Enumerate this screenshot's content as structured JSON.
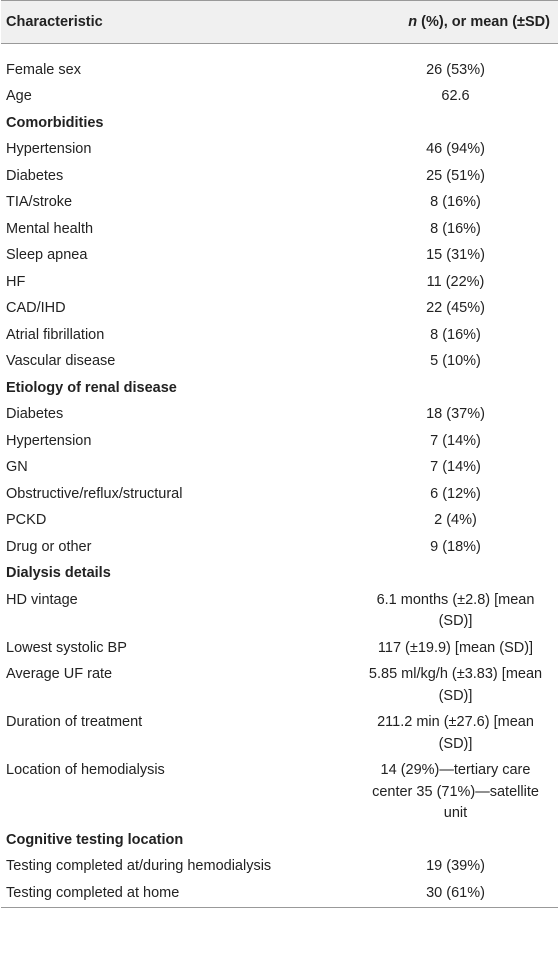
{
  "table": {
    "header": {
      "characteristic": "Characteristic",
      "stat_italic": "n",
      "stat_rest": " (%), or mean (±SD)"
    },
    "rows": [
      [
        "Female sex",
        "26 (53%)"
      ],
      [
        "Age",
        "62.6"
      ],
      [
        "Comorbidities"
      ],
      [
        "Hypertension",
        "46 (94%)"
      ],
      [
        "Diabetes",
        "25 (51%)"
      ],
      [
        "TIA/stroke",
        "8 (16%)"
      ],
      [
        "Mental health",
        "8 (16%)"
      ],
      [
        "Sleep apnea",
        "15 (31%)"
      ],
      [
        "HF",
        "11 (22%)"
      ],
      [
        "CAD/IHD",
        "22 (45%)"
      ],
      [
        "Atrial fibrillation",
        "8 (16%)"
      ],
      [
        "Vascular disease",
        "5 (10%)"
      ],
      [
        "Etiology of renal disease"
      ],
      [
        "Diabetes",
        "18 (37%)"
      ],
      [
        "Hypertension",
        "7 (14%)"
      ],
      [
        "GN",
        "7 (14%)"
      ],
      [
        "Obstructive/reflux/structural",
        "6 (12%)"
      ],
      [
        "PCKD",
        "2 (4%)"
      ],
      [
        "Drug or other",
        "9 (18%)"
      ],
      [
        "Dialysis details"
      ],
      [
        "HD vintage",
        "6.1 months (±2.8) [mean (SD)]"
      ],
      [
        "Lowest systolic BP",
        "117 (±19.9) [mean (SD)]"
      ],
      [
        "Average UF rate",
        "5.85 ml/kg/h (±3.83) [mean (SD)]"
      ],
      [
        "Duration of treatment",
        "211.2 min (±27.6) [mean (SD)]"
      ],
      [
        "Location of hemodialysis",
        "14 (29%)—tertiary care center 35 (71%)—satellite unit"
      ],
      [
        "Cognitive testing location"
      ],
      [
        "Testing completed at/during hemodialysis",
        "19 (39%)"
      ],
      [
        "Testing completed at home",
        "30 (61%)"
      ]
    ]
  }
}
